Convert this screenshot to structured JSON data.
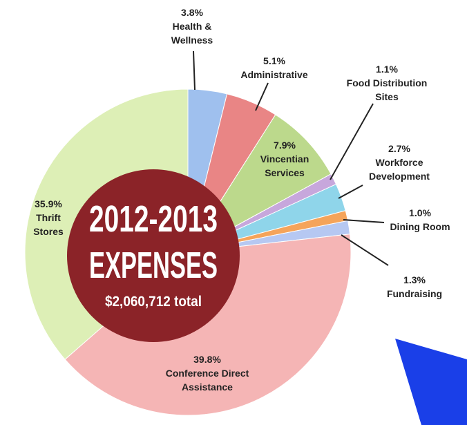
{
  "chart_data": {
    "type": "pie",
    "title": "2012-2013",
    "subtitle": "EXPENSES",
    "total_label": "$2,060,712 total",
    "series": [
      {
        "names": [
          "Health & Wellness",
          "Administrative",
          "Vincentian Services",
          "Food Distribution Sites",
          "Workforce Development",
          "Dining Room",
          "Fundraising",
          "Conference Direct Assistance",
          "Thrift Stores"
        ],
        "values": [
          3.8,
          5.1,
          7.9,
          1.1,
          2.7,
          1.0,
          1.3,
          39.8,
          35.9
        ],
        "value_labels": [
          "3.8%",
          "5.1%",
          "7.9%",
          "1.1%",
          "2.7%",
          "1.0%",
          "1.3%",
          "39.8%",
          "35.9%"
        ],
        "colors": [
          "#9fc0ee",
          "#e98585",
          "#bcd98c",
          "#c7a7dc",
          "#8fd5ea",
          "#f5a45a",
          "#b6c8f2",
          "#f5b5b5",
          "#ddefb6"
        ]
      }
    ],
    "center_color": "#8b2328"
  }
}
